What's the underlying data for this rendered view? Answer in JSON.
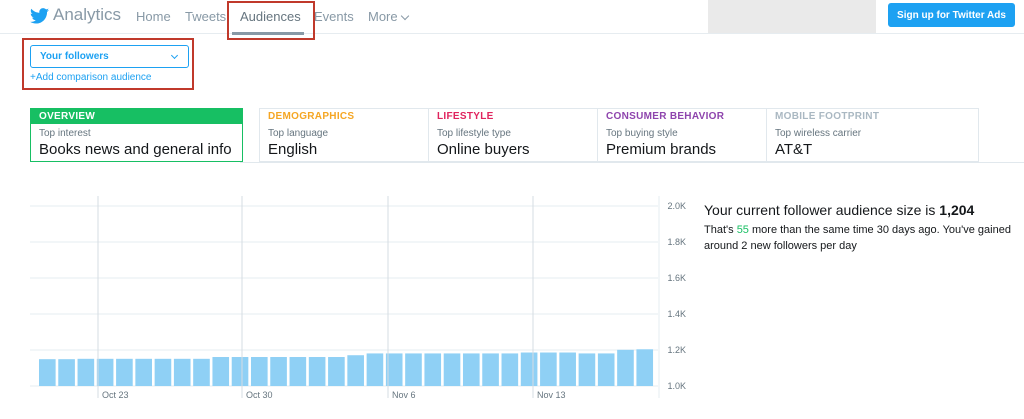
{
  "header": {
    "brand": "Analytics",
    "nav": [
      "Home",
      "Tweets",
      "Audiences",
      "Events",
      "More"
    ],
    "active_nav": "Audiences",
    "ads_button": "Sign up for Twitter Ads"
  },
  "audience_selector": {
    "selected": "Your followers",
    "add_comparison": "+Add comparison audience"
  },
  "cards": [
    {
      "heading": "OVERVIEW",
      "sublabel": "Top interest",
      "value": "Books news and general info",
      "color": "#17bf63"
    },
    {
      "heading": "DEMOGRAPHICS",
      "sublabel": "Top language",
      "value": "English",
      "color": "#f5a623"
    },
    {
      "heading": "LIFESTYLE",
      "sublabel": "Top lifestyle type",
      "value": "Online buyers",
      "color": "#e0245e"
    },
    {
      "heading": "CONSUMER BEHAVIOR",
      "sublabel": "Top buying style",
      "value": "Premium brands",
      "color": "#8e44ad"
    },
    {
      "heading": "MOBILE FOOTPRINT",
      "sublabel": "Top wireless carrier",
      "value": "AT&T",
      "color": "#aab8c2"
    }
  ],
  "summary": {
    "size_label": "Your current follower audience size is",
    "size_value": "1,204",
    "desc_prefix": "That's",
    "desc_number": "55",
    "desc_suffix": "more than the same time 30 days ago. You've gained around 2 new followers per day"
  },
  "chart_data": {
    "type": "bar",
    "ylim": [
      1000,
      2000
    ],
    "yticks": [
      "2.0K",
      "1.8K",
      "1.6K",
      "1.4K",
      "1.2K",
      "1.0K"
    ],
    "xlabels": [
      "Oct 23",
      "Oct 30",
      "Nov 6",
      "Nov 13"
    ],
    "values": [
      1149,
      1149,
      1151,
      1151,
      1151,
      1151,
      1151,
      1151,
      1151,
      1161,
      1161,
      1161,
      1161,
      1161,
      1161,
      1161,
      1171,
      1181,
      1181,
      1181,
      1181,
      1181,
      1181,
      1181,
      1181,
      1186,
      1186,
      1186,
      1181,
      1181,
      1201,
      1204
    ],
    "bar_color": "#8fd0f5",
    "grid": true
  }
}
